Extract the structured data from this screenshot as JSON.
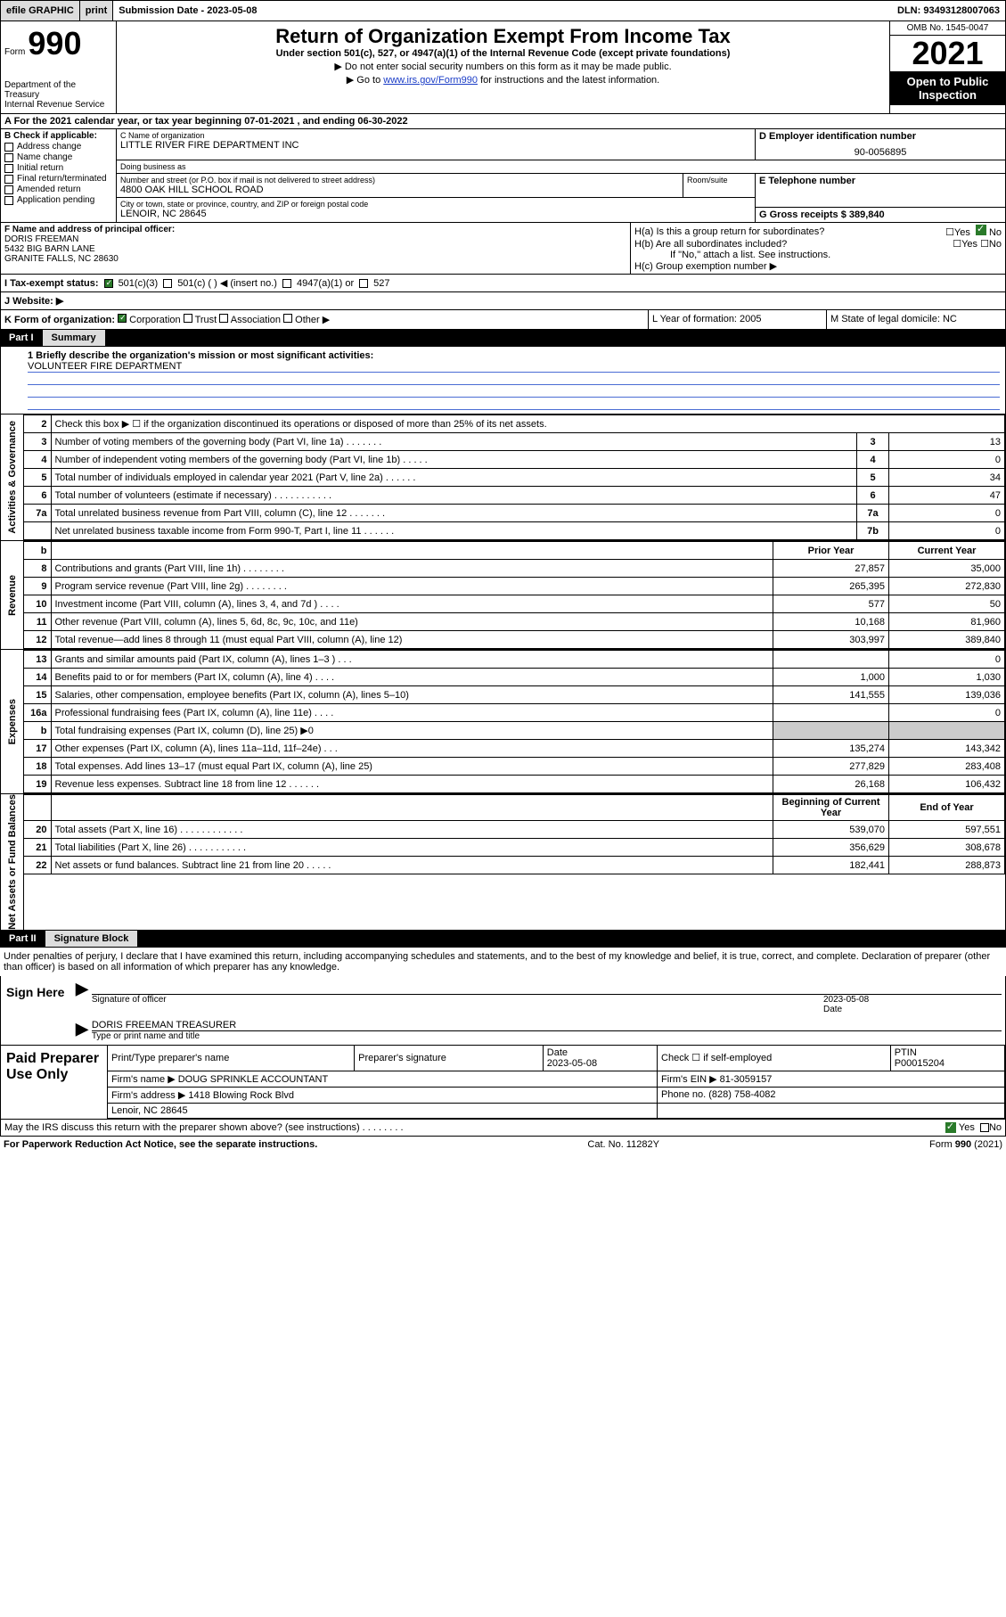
{
  "topbar": {
    "efile": "efile GRAPHIC",
    "print": "print",
    "sub_date_label": "Submission Date - 2023-05-08",
    "dln": "DLN: 93493128007063"
  },
  "header": {
    "form_word": "Form",
    "form_number": "990",
    "dept": "Department of the Treasury\nInternal Revenue Service",
    "title": "Return of Organization Exempt From Income Tax",
    "subtitle": "Under section 501(c), 527, or 4947(a)(1) of the Internal Revenue Code (except private foundations)",
    "note1": "▶ Do not enter social security numbers on this form as it may be made public.",
    "note2_pre": "▶ Go to ",
    "note2_link": "www.irs.gov/Form990",
    "note2_post": " for instructions and the latest information.",
    "omb": "OMB No. 1545-0047",
    "year": "2021",
    "otp": "Open to Public Inspection"
  },
  "row_a": "A For the 2021 calendar year, or tax year beginning 07-01-2021   , and ending 06-30-2022",
  "col_b": {
    "title": "B Check if applicable:",
    "items": [
      "Address change",
      "Name change",
      "Initial return",
      "Final return/terminated",
      "Amended return",
      "Application pending"
    ]
  },
  "col_c": {
    "name_label": "C Name of organization",
    "name": "LITTLE RIVER FIRE DEPARTMENT INC",
    "dba_label": "Doing business as",
    "dba": "",
    "street_label": "Number and street (or P.O. box if mail is not delivered to street address)",
    "street": "4800 OAK HILL SCHOOL ROAD",
    "room_label": "Room/suite",
    "city_label": "City or town, state or province, country, and ZIP or foreign postal code",
    "city": "LENOIR, NC  28645"
  },
  "col_d": {
    "label": "D Employer identification number",
    "value": "90-0056895"
  },
  "col_e": {
    "label": "E Telephone number",
    "value": ""
  },
  "col_g": "G Gross receipts $ 389,840",
  "col_f": {
    "label": "F  Name and address of principal officer:",
    "name": "DORIS FREEMAN",
    "line2": "5432 BIG BARN LANE",
    "line3": "GRANITE FALLS, NC  28630"
  },
  "col_h": {
    "ha": "H(a)  Is this a group return for subordinates?",
    "hb": "H(b)  Are all subordinates included?",
    "hb_note": "If \"No,\" attach a list. See instructions.",
    "hc": "H(c)  Group exemption number ▶",
    "no_checked": "No"
  },
  "row_tax": {
    "label": "I   Tax-exempt status:",
    "c3": "501(c)(3)",
    "c_blank": "501(c) (   ) ◀ (insert no.)",
    "a1": "4947(a)(1) or",
    "s527": "527"
  },
  "row_web": "J   Website: ▶",
  "row_k": {
    "k": "K Form of organization:",
    "corp": "Corporation",
    "trust": "Trust",
    "assoc": "Association",
    "other": "Other ▶",
    "l": "L Year of formation: 2005",
    "m": "M State of legal domicile: NC"
  },
  "part1": {
    "num": "Part I",
    "title": "Summary"
  },
  "mission_label": "1  Briefly describe the organization's mission or most significant activities:",
  "mission": "VOLUNTEER FIRE DEPARTMENT",
  "gov_rows": [
    {
      "n": "2",
      "d": "Check this box ▶ ☐  if the organization discontinued its operations or disposed of more than 25% of its net assets."
    },
    {
      "n": "3",
      "d": "Number of voting members of the governing body (Part VI, line 1a)   .    .    .    .    .    .    .",
      "k": "3",
      "v": "13"
    },
    {
      "n": "4",
      "d": "Number of independent voting members of the governing body (Part VI, line 1b)   .    .    .    .    .",
      "k": "4",
      "v": "0"
    },
    {
      "n": "5",
      "d": "Total number of individuals employed in calendar year 2021 (Part V, line 2a)   .    .    .    .    .    .",
      "k": "5",
      "v": "34"
    },
    {
      "n": "6",
      "d": "Total number of volunteers (estimate if necessary)    .    .    .    .    .    .    .    .    .    .    .",
      "k": "6",
      "v": "47"
    },
    {
      "n": "7a",
      "d": "Total unrelated business revenue from Part VIII, column (C), line 12   .    .    .    .    .    .    .",
      "k": "7a",
      "v": "0"
    },
    {
      "n": "",
      "d": "Net unrelated business taxable income from Form 990-T, Part I, line 11    .    .    .    .    .    .",
      "k": "7b",
      "v": "0"
    }
  ],
  "rev_hdr": {
    "b": "b",
    "py": "Prior Year",
    "cy": "Current Year"
  },
  "rev_rows": [
    {
      "n": "8",
      "d": "Contributions and grants (Part VIII, line 1h)    .    .    .    .    .    .    .    .",
      "py": "27,857",
      "cy": "35,000"
    },
    {
      "n": "9",
      "d": "Program service revenue (Part VIII, line 2g)    .    .    .    .    .    .    .    .",
      "py": "265,395",
      "cy": "272,830"
    },
    {
      "n": "10",
      "d": "Investment income (Part VIII, column (A), lines 3, 4, and 7d )    .    .    .    .",
      "py": "577",
      "cy": "50"
    },
    {
      "n": "11",
      "d": "Other revenue (Part VIII, column (A), lines 5, 6d, 8c, 9c, 10c, and 11e)",
      "py": "10,168",
      "cy": "81,960"
    },
    {
      "n": "12",
      "d": "Total revenue—add lines 8 through 11 (must equal Part VIII, column (A), line 12)",
      "py": "303,997",
      "cy": "389,840"
    }
  ],
  "exp_rows": [
    {
      "n": "13",
      "d": "Grants and similar amounts paid (Part IX, column (A), lines 1–3 )    .    .    .",
      "py": "",
      "cy": "0"
    },
    {
      "n": "14",
      "d": "Benefits paid to or for members (Part IX, column (A), line 4)    .    .    .    .",
      "py": "1,000",
      "cy": "1,030"
    },
    {
      "n": "15",
      "d": "Salaries, other compensation, employee benefits (Part IX, column (A), lines 5–10)",
      "py": "141,555",
      "cy": "139,036"
    },
    {
      "n": "16a",
      "d": "Professional fundraising fees (Part IX, column (A), line 11e)    .    .    .    .",
      "py": "",
      "cy": "0"
    },
    {
      "n": "b",
      "d": "Total fundraising expenses (Part IX, column (D), line 25) ▶0",
      "shade": true
    },
    {
      "n": "17",
      "d": "Other expenses (Part IX, column (A), lines 11a–11d, 11f–24e)    .    .    .",
      "py": "135,274",
      "cy": "143,342"
    },
    {
      "n": "18",
      "d": "Total expenses. Add lines 13–17 (must equal Part IX, column (A), line 25)",
      "py": "277,829",
      "cy": "283,408"
    },
    {
      "n": "19",
      "d": "Revenue less expenses. Subtract line 18 from line 12    .    .    .    .    .    .",
      "py": "26,168",
      "cy": "106,432"
    }
  ],
  "net_hdr": {
    "py": "Beginning of Current Year",
    "cy": "End of Year"
  },
  "net_rows": [
    {
      "n": "20",
      "d": "Total assets (Part X, line 16)   .    .    .    .    .    .    .    .    .    .    .    .",
      "py": "539,070",
      "cy": "597,551"
    },
    {
      "n": "21",
      "d": "Total liabilities (Part X, line 26)   .    .    .    .    .    .    .    .    .    .    .",
      "py": "356,629",
      "cy": "308,678"
    },
    {
      "n": "22",
      "d": "Net assets or fund balances. Subtract line 21 from line 20   .    .    .    .    .",
      "py": "182,441",
      "cy": "288,873"
    }
  ],
  "part2": {
    "num": "Part II",
    "title": "Signature Block"
  },
  "sig_intro": "Under penalties of perjury, I declare that I have examined this return, including accompanying schedules and statements, and to the best of my knowledge and belief, it is true, correct, and complete. Declaration of preparer (other than officer) is based on all information of which preparer has any knowledge.",
  "sig": {
    "sign_here": "Sign Here",
    "sig_officer": "Signature of officer",
    "date": "2023-05-08",
    "date_label": "Date",
    "name_title": "DORIS FREEMAN TREASURER",
    "name_label": "Type or print name and title"
  },
  "paid": {
    "title": "Paid Preparer Use Only",
    "r1": {
      "c1": "Print/Type preparer's name",
      "c2": "Preparer's signature",
      "c3": "Date\n2023-05-08",
      "c4": "Check ☐ if self-employed",
      "c5": "PTIN\nP00015204"
    },
    "r2": {
      "c1": "Firm's name   ▶ DOUG SPRINKLE ACCOUNTANT",
      "c2": "Firm's EIN ▶ 81-3059157"
    },
    "r3": {
      "c1": "Firm's address ▶ 1418 Blowing Rock Blvd",
      "c2": "Phone no. (828) 758-4082"
    },
    "r4": {
      "c1": "Lenoir, NC  28645"
    }
  },
  "may_discuss": "May the IRS discuss this return with the preparer shown above? (see instructions)   .    .    .    .    .    .    .    .",
  "footer": {
    "l": "For Paperwork Reduction Act Notice, see the separate instructions.",
    "m": "Cat. No. 11282Y",
    "r": "Form 990 (2021)"
  },
  "colors": {
    "link": "#1a3cc7",
    "check": "#2a7a2a",
    "shade": "#cccccc",
    "line": "#4a6cd4"
  }
}
